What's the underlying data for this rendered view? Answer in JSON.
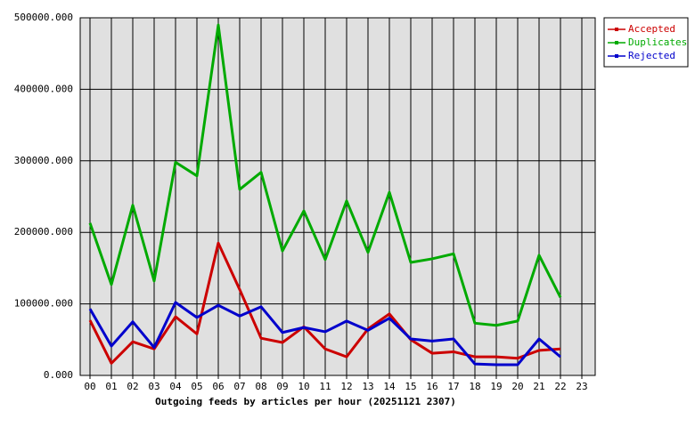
{
  "chart_data": {
    "type": "line",
    "title": "Outgoing feeds by articles per hour (20251121 2307)",
    "categories": [
      "00",
      "01",
      "02",
      "03",
      "04",
      "05",
      "06",
      "07",
      "08",
      "09",
      "10",
      "11",
      "12",
      "13",
      "14",
      "15",
      "16",
      "17",
      "18",
      "19",
      "20",
      "21",
      "22",
      "23"
    ],
    "series": [
      {
        "name": "Accepted",
        "color": "#cc0000",
        "values": [
          77000,
          17000,
          47000,
          37000,
          82000,
          58000,
          185000,
          120000,
          52000,
          46000,
          68000,
          37000,
          26000,
          65000,
          86000,
          50000,
          31000,
          33000,
          26000,
          26000,
          24000,
          35000,
          37000,
          null
        ]
      },
      {
        "name": "Duplicates",
        "color": "#00aa00",
        "values": [
          213000,
          127000,
          238000,
          132000,
          298000,
          279000,
          490000,
          260000,
          284000,
          174000,
          230000,
          162000,
          244000,
          172000,
          256000,
          158000,
          163000,
          170000,
          73000,
          70000,
          76000,
          168000,
          109000,
          null
        ]
      },
      {
        "name": "Rejected",
        "color": "#0000cc",
        "values": [
          93000,
          41000,
          75000,
          39000,
          102000,
          81000,
          98000,
          83000,
          96000,
          60000,
          67000,
          61000,
          76000,
          63000,
          80000,
          51000,
          48000,
          51000,
          16000,
          15000,
          15000,
          51000,
          26000,
          null
        ]
      }
    ],
    "ylim": [
      0,
      500000
    ],
    "yticks": [
      {
        "value": 0,
        "label": "0.000"
      },
      {
        "value": 100000,
        "label": "100000.000"
      },
      {
        "value": 200000,
        "label": "200000.000"
      },
      {
        "value": 300000,
        "label": "300000.000"
      },
      {
        "value": 400000,
        "label": "400000.000"
      },
      {
        "value": 500000,
        "label": "500000.000"
      }
    ],
    "grid": true,
    "legend": "top-right"
  }
}
